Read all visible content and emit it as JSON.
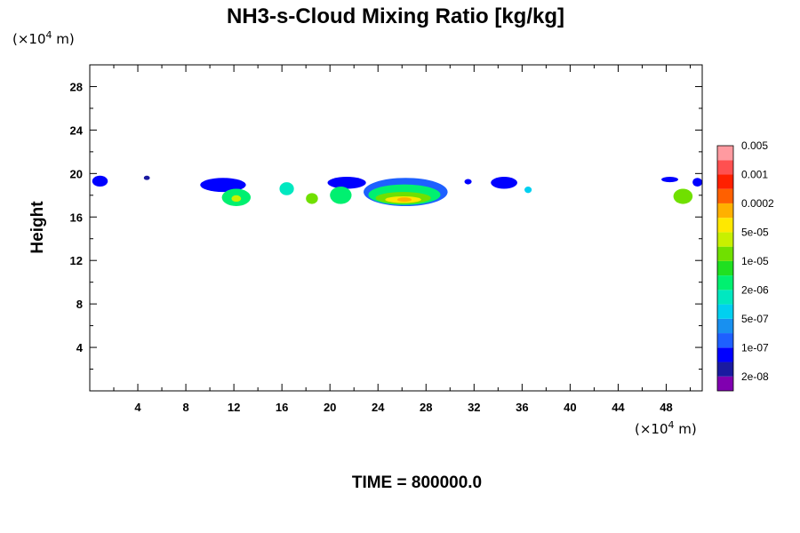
{
  "chart_data": {
    "type": "heatmap",
    "title": "NH3-s-Cloud Mixing Ratio [kg/kg]",
    "ylabel": "Height",
    "x_unit": "(×10",
    "x_unit_exp": "4",
    "x_unit_tail": " m)",
    "y_unit": "(×10",
    "y_unit_exp": "4",
    "y_unit_tail": " m)",
    "xlim": [
      0,
      51
    ],
    "ylim": [
      0,
      30
    ],
    "x_ticks": [
      4,
      8,
      12,
      16,
      20,
      24,
      28,
      32,
      36,
      40,
      44,
      48
    ],
    "y_ticks": [
      4,
      8,
      12,
      16,
      20,
      24,
      28
    ],
    "x_tick_labels": [
      "4",
      "8",
      "12",
      "16",
      "20",
      "24",
      "28",
      "32",
      "36",
      "40",
      "44",
      "48"
    ],
    "y_tick_labels": [
      "4",
      "8",
      "12",
      "16",
      "20",
      "24",
      "28"
    ],
    "colorbar": {
      "colors": [
        "#8000b0",
        "#1a1aa0",
        "#0000ff",
        "#1e60ff",
        "#1890f0",
        "#00d0f0",
        "#00e8c0",
        "#00f070",
        "#20e020",
        "#70e000",
        "#c8f000",
        "#ffe800",
        "#ffb000",
        "#ff6000",
        "#ff2000",
        "#ff5050",
        "#ff9aa0"
      ],
      "labels": [
        "2e-08",
        "1e-07",
        "5e-07",
        "2e-06",
        "1e-05",
        "5e-05",
        "0.0002",
        "0.001",
        "0.005"
      ]
    },
    "cloud_regions": [
      {
        "x0": 0.2,
        "x1": 1.5,
        "y0": 18.8,
        "y1": 19.8,
        "level": 2
      },
      {
        "x0": 4.5,
        "x1": 5.0,
        "y0": 19.4,
        "y1": 19.8,
        "level": 1
      },
      {
        "x0": 9.2,
        "x1": 13.0,
        "y0": 18.3,
        "y1": 19.6,
        "level": 2
      },
      {
        "x0": 11.0,
        "x1": 13.4,
        "y0": 17.0,
        "y1": 18.6,
        "level": 7
      },
      {
        "x0": 11.8,
        "x1": 12.6,
        "y0": 17.4,
        "y1": 18.0,
        "level": 10
      },
      {
        "x0": 15.8,
        "x1": 17.0,
        "y0": 18.0,
        "y1": 19.2,
        "level": 6
      },
      {
        "x0": 18.0,
        "x1": 19.0,
        "y0": 17.2,
        "y1": 18.2,
        "level": 9
      },
      {
        "x0": 19.8,
        "x1": 23.0,
        "y0": 18.6,
        "y1": 19.7,
        "level": 2
      },
      {
        "x0": 20.0,
        "x1": 21.8,
        "y0": 17.2,
        "y1": 18.8,
        "level": 7
      },
      {
        "x0": 22.8,
        "x1": 29.8,
        "y0": 17.0,
        "y1": 19.6,
        "level": 3
      },
      {
        "x0": 23.2,
        "x1": 29.2,
        "y0": 17.1,
        "y1": 19.0,
        "level": 7
      },
      {
        "x0": 23.8,
        "x1": 28.4,
        "y0": 17.2,
        "y1": 18.3,
        "level": 9
      },
      {
        "x0": 24.6,
        "x1": 27.6,
        "y0": 17.3,
        "y1": 17.9,
        "level": 11
      },
      {
        "x0": 25.6,
        "x1": 26.8,
        "y0": 17.4,
        "y1": 17.8,
        "level": 12
      },
      {
        "x0": 31.2,
        "x1": 31.8,
        "y0": 19.0,
        "y1": 19.5,
        "level": 2
      },
      {
        "x0": 33.4,
        "x1": 35.6,
        "y0": 18.6,
        "y1": 19.7,
        "level": 2
      },
      {
        "x0": 36.2,
        "x1": 36.8,
        "y0": 18.2,
        "y1": 18.8,
        "level": 5
      },
      {
        "x0": 47.6,
        "x1": 49.0,
        "y0": 19.2,
        "y1": 19.7,
        "level": 2
      },
      {
        "x0": 48.6,
        "x1": 50.2,
        "y0": 17.2,
        "y1": 18.6,
        "level": 9
      },
      {
        "x0": 50.2,
        "x1": 51.0,
        "y0": 18.8,
        "y1": 19.6,
        "level": 2
      }
    ]
  },
  "time_label": "TIME = 800000.0"
}
